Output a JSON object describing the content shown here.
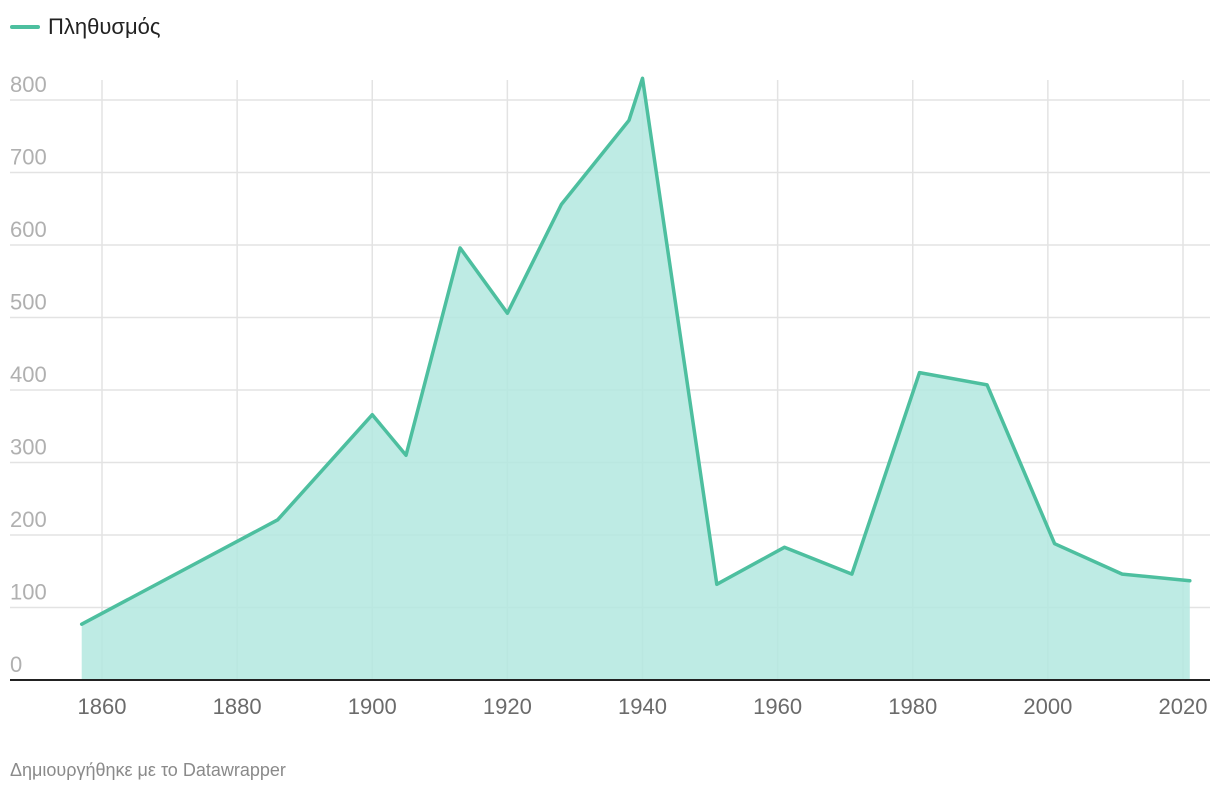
{
  "legend": {
    "label": "Πληθυσμός"
  },
  "footer": {
    "credit": "Δημιουργήθηκε με το Datawrapper"
  },
  "colors": {
    "line": "#4dbf9f",
    "area": "#b3e8df",
    "grid": "#e3e3e3",
    "baseline": "#222222"
  },
  "chart_data": {
    "type": "area",
    "title": "",
    "xlabel": "",
    "ylabel": "",
    "xlim": [
      1855,
      2023
    ],
    "ylim": [
      0,
      840
    ],
    "grid": true,
    "legend_position": "top-left",
    "x_ticks": [
      1860,
      1880,
      1900,
      1920,
      1940,
      1960,
      1980,
      2000,
      2020
    ],
    "y_ticks": [
      0,
      100,
      200,
      300,
      400,
      500,
      600,
      700,
      800
    ],
    "series": [
      {
        "name": "Πληθυσμός",
        "x": [
          1857,
          1886,
          1900,
          1905,
          1913,
          1920,
          1928,
          1938,
          1940,
          1951,
          1961,
          1971,
          1981,
          1991,
          2001,
          2011,
          2021
        ],
        "values": [
          77,
          221,
          366,
          310,
          596,
          506,
          656,
          772,
          830,
          132,
          183,
          146,
          424,
          407,
          188,
          146,
          137
        ]
      }
    ]
  }
}
